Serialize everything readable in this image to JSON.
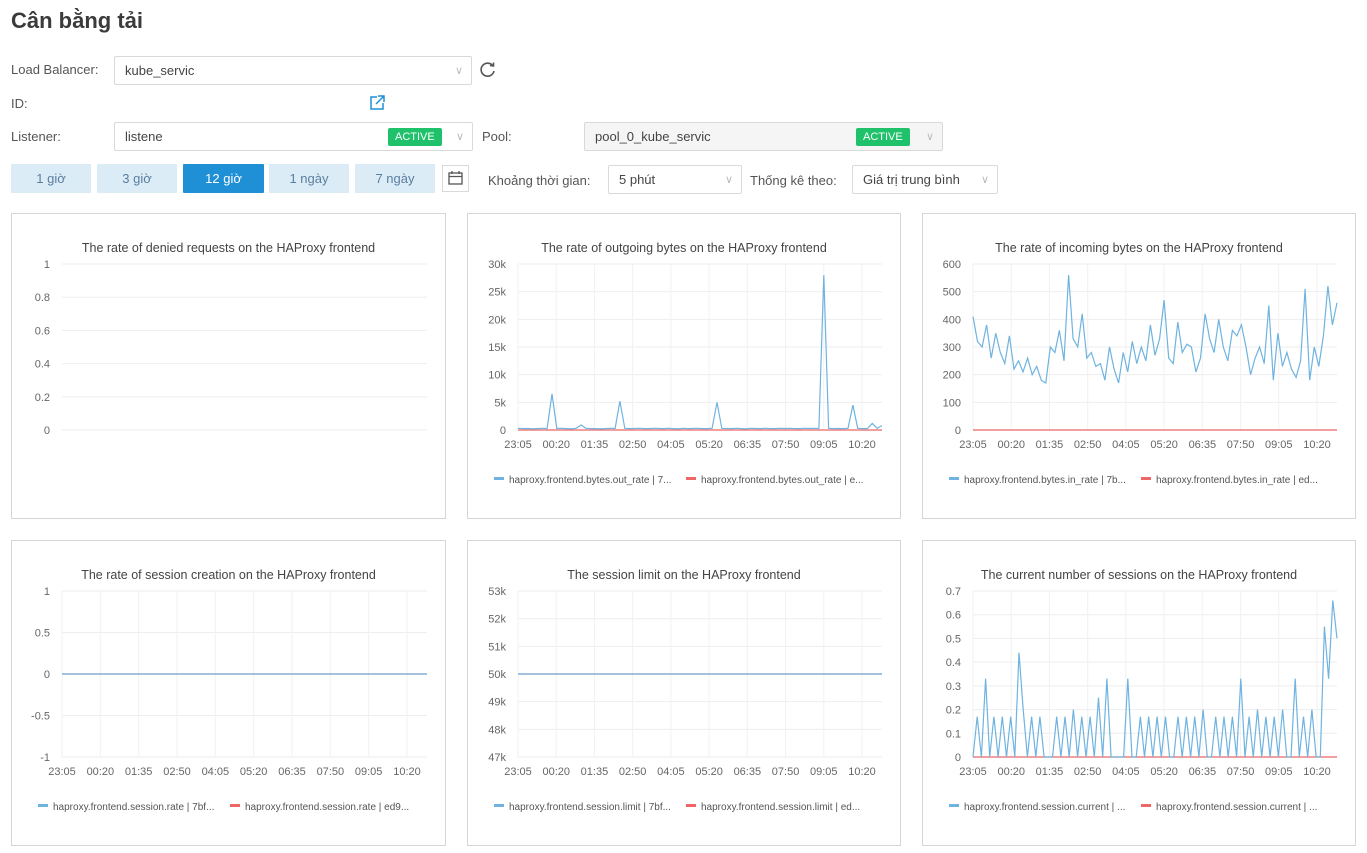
{
  "page": {
    "title": "Cân bằng tải"
  },
  "filters": {
    "load_balancer_label": "Load Balancer:",
    "load_balancer_value": "kube_servic",
    "id_label": "ID:",
    "listener_label": "Listener:",
    "listener_value": "listene",
    "listener_status": "ACTIVE",
    "pool_label": "Pool:",
    "pool_value": "pool_0_kube_servic",
    "pool_status": "ACTIVE",
    "time_buttons": [
      "1 giờ",
      "3 giờ",
      "12 giờ",
      "1 ngày",
      "7 ngày"
    ],
    "active_time": "12 giờ",
    "interval_label": "Khoảng thời gian:",
    "interval_value": "5 phút",
    "stat_label": "Thống kê theo:",
    "stat_value": "Giá trị trung bình"
  },
  "colors": {
    "series1": "#6fb3e0",
    "series2": "#ee6666",
    "accent": "#1f8fd6",
    "active_badge": "#1fc16b"
  },
  "chart_data": [
    {
      "type": "line",
      "title": "The rate of denied requests on the HAProxy frontend",
      "y_ticks": [
        "1",
        "0.8",
        "0.6",
        "0.4",
        "0.2",
        "0"
      ],
      "ylim": [
        0,
        1
      ],
      "x": [],
      "x_ticks": [],
      "series": []
    },
    {
      "type": "line",
      "title": "The rate of outgoing bytes on the HAProxy frontend",
      "y_ticks": [
        "30k",
        "25k",
        "20k",
        "15k",
        "10k",
        "5k",
        "0"
      ],
      "ylim": [
        0,
        30000
      ],
      "x_ticks": [
        "23:05",
        "00:20",
        "01:35",
        "02:50",
        "04:05",
        "05:20",
        "06:35",
        "07:50",
        "09:05",
        "10:20"
      ],
      "series": [
        {
          "name": "haproxy.frontend.bytes.out_rate | 7...",
          "values": [
            300,
            250,
            280,
            200,
            260,
            300,
            250,
            6500,
            280,
            300,
            250,
            200,
            300,
            900,
            300,
            260,
            250,
            200,
            260,
            300,
            280,
            5200,
            300,
            250,
            280,
            300,
            260,
            250,
            300,
            280,
            250,
            300,
            260,
            200,
            300,
            250,
            280,
            300,
            260,
            250,
            300,
            5000,
            300,
            280,
            250,
            300,
            260,
            200,
            300,
            280,
            250,
            300,
            260,
            250,
            300,
            280,
            300,
            250,
            260,
            300,
            280,
            300,
            250,
            28000,
            300,
            250,
            280,
            260,
            300,
            4500,
            300,
            250,
            280,
            1200,
            300,
            800
          ]
        },
        {
          "name": "haproxy.frontend.bytes.out_rate | e...",
          "values": [
            0,
            0,
            0,
            0,
            0,
            0,
            0,
            0,
            0,
            0,
            0,
            0,
            0,
            0,
            0,
            0,
            0,
            0,
            0,
            0,
            0,
            0,
            0,
            0,
            0,
            0,
            0,
            0,
            0,
            0,
            0,
            0,
            0,
            0,
            0,
            0,
            0,
            0,
            0,
            0,
            0,
            0,
            0,
            0,
            0,
            0,
            0,
            0,
            0,
            0,
            0,
            0,
            0,
            0,
            0,
            0,
            0,
            0,
            0,
            0,
            0,
            0,
            0,
            0,
            0,
            0,
            0,
            0,
            0,
            0,
            0,
            0,
            0,
            0,
            0,
            0
          ]
        }
      ]
    },
    {
      "type": "line",
      "title": "The rate of incoming bytes on the HAProxy frontend",
      "y_ticks": [
        "600",
        "500",
        "400",
        "300",
        "200",
        "100",
        "0"
      ],
      "ylim": [
        0,
        600
      ],
      "x_ticks": [
        "23:05",
        "00:20",
        "01:35",
        "02:50",
        "04:05",
        "05:20",
        "06:35",
        "07:50",
        "09:05",
        "10:20"
      ],
      "series": [
        {
          "name": "haproxy.frontend.bytes.in_rate | 7b...",
          "values": [
            410,
            320,
            300,
            380,
            260,
            350,
            280,
            240,
            340,
            220,
            250,
            210,
            260,
            200,
            230,
            180,
            170,
            300,
            280,
            360,
            250,
            560,
            330,
            300,
            420,
            260,
            280,
            230,
            240,
            180,
            300,
            220,
            170,
            280,
            210,
            320,
            240,
            300,
            250,
            380,
            270,
            330,
            470,
            260,
            240,
            390,
            280,
            310,
            300,
            210,
            260,
            420,
            330,
            280,
            400,
            300,
            250,
            360,
            340,
            380,
            300,
            200,
            260,
            300,
            240,
            450,
            180,
            350,
            230,
            280,
            220,
            190,
            250,
            510,
            180,
            300,
            230,
            340,
            520,
            380,
            460
          ]
        },
        {
          "name": "haproxy.frontend.bytes.in_rate | ed...",
          "values": [
            0,
            0,
            0,
            0,
            0,
            0,
            0,
            0,
            0,
            0,
            0,
            0,
            0,
            0,
            0,
            0,
            0,
            0,
            0,
            0,
            0,
            0,
            0,
            0,
            0,
            0,
            0,
            0,
            0,
            0,
            0,
            0,
            0,
            0,
            0,
            0,
            0,
            0,
            0,
            0,
            0,
            0,
            0,
            0,
            0,
            0,
            0,
            0,
            0,
            0,
            0,
            0,
            0,
            0,
            0,
            0,
            0,
            0,
            0,
            0,
            0,
            0,
            0,
            0,
            0,
            0,
            0,
            0,
            0,
            0,
            0,
            0,
            0,
            0,
            0,
            0,
            0,
            0,
            0,
            0,
            0
          ]
        }
      ]
    },
    {
      "type": "line",
      "title": "The rate of session creation on the HAProxy frontend",
      "y_ticks": [
        "1",
        "0.5",
        "0",
        "-0.5",
        "-1"
      ],
      "ylim": [
        -1,
        1
      ],
      "x_ticks": [
        "23:05",
        "00:20",
        "01:35",
        "02:50",
        "04:05",
        "05:20",
        "06:35",
        "07:50",
        "09:05",
        "10:20"
      ],
      "series": [
        {
          "name": "haproxy.frontend.session.rate | 7bf...",
          "values": [
            0,
            0,
            0,
            0,
            0,
            0,
            0,
            0,
            0,
            0,
            0,
            0
          ]
        },
        {
          "name": "haproxy.frontend.session.rate | ed9...",
          "values": [
            0,
            0,
            0,
            0,
            0,
            0,
            0,
            0,
            0,
            0,
            0,
            0
          ]
        }
      ]
    },
    {
      "type": "line",
      "title": "The session limit on the HAProxy frontend",
      "y_ticks": [
        "53k",
        "52k",
        "51k",
        "50k",
        "49k",
        "48k",
        "47k"
      ],
      "ylim": [
        47000,
        53000
      ],
      "x_ticks": [
        "23:05",
        "00:20",
        "01:35",
        "02:50",
        "04:05",
        "05:20",
        "06:35",
        "07:50",
        "09:05",
        "10:20"
      ],
      "series": [
        {
          "name": "haproxy.frontend.session.limit | 7bf...",
          "values": [
            50000,
            50000,
            50000,
            50000,
            50000,
            50000,
            50000,
            50000,
            50000,
            50000,
            50000,
            50000
          ]
        },
        {
          "name": "haproxy.frontend.session.limit | ed...",
          "values": [
            50000,
            50000,
            50000,
            50000,
            50000,
            50000,
            50000,
            50000,
            50000,
            50000,
            50000,
            50000
          ]
        }
      ]
    },
    {
      "type": "line",
      "title": "The current number of sessions on the HAProxy frontend",
      "y_ticks": [
        "0.7",
        "0.6",
        "0.5",
        "0.4",
        "0.3",
        "0.2",
        "0.1",
        "0"
      ],
      "ylim": [
        0,
        0.7
      ],
      "x_ticks": [
        "23:05",
        "00:20",
        "01:35",
        "02:50",
        "04:05",
        "05:20",
        "06:35",
        "07:50",
        "09:05",
        "10:20"
      ],
      "series": [
        {
          "name": "haproxy.frontend.session.current | ...",
          "values": [
            0,
            0.17,
            0,
            0.33,
            0,
            0.17,
            0,
            0.17,
            0,
            0.17,
            0,
            0.44,
            0.2,
            0,
            0.17,
            0,
            0.17,
            0,
            0,
            0,
            0.17,
            0,
            0.17,
            0,
            0.2,
            0,
            0.17,
            0,
            0.17,
            0,
            0.25,
            0,
            0.33,
            0,
            0,
            0,
            0,
            0.33,
            0,
            0,
            0.17,
            0,
            0.17,
            0,
            0.17,
            0,
            0.17,
            0,
            0,
            0.17,
            0,
            0.17,
            0,
            0.17,
            0,
            0.2,
            0,
            0,
            0.17,
            0,
            0.17,
            0,
            0.17,
            0,
            0.33,
            0,
            0.17,
            0,
            0.2,
            0,
            0.17,
            0,
            0.17,
            0,
            0.2,
            0,
            0,
            0.33,
            0,
            0.17,
            0,
            0.2,
            0,
            0,
            0.55,
            0.33,
            0.66,
            0.5
          ]
        },
        {
          "name": "haproxy.frontend.session.current | ...",
          "values": [
            0,
            0,
            0,
            0,
            0,
            0,
            0,
            0,
            0,
            0,
            0,
            0
          ]
        }
      ]
    }
  ]
}
